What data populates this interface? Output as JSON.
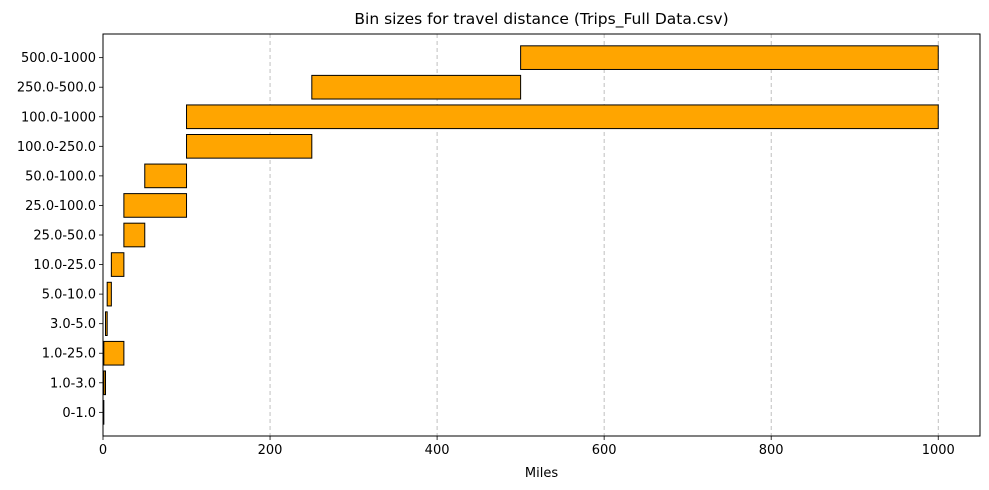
{
  "chart_data": {
    "type": "bar",
    "orientation": "horizontal",
    "title": "Bin sizes for travel distance (Trips_Full Data.csv)",
    "xlabel": "Miles",
    "ylabel": "",
    "xlim": [
      0,
      1050
    ],
    "x_ticks": [
      0,
      200,
      400,
      600,
      800,
      1000
    ],
    "x_grid": true,
    "y_grid": false,
    "bar_color": "#ffa500",
    "edge_color": "#000000",
    "grid_color": "#b0b0b0",
    "bars": [
      {
        "label": "0-1.0",
        "start": 0,
        "end": 1
      },
      {
        "label": "1.0-3.0",
        "start": 1,
        "end": 3
      },
      {
        "label": "1.0-25.0",
        "start": 1,
        "end": 25
      },
      {
        "label": "3.0-5.0",
        "start": 3,
        "end": 5
      },
      {
        "label": "5.0-10.0",
        "start": 5,
        "end": 10
      },
      {
        "label": "10.0-25.0",
        "start": 10,
        "end": 25
      },
      {
        "label": "25.0-50.0",
        "start": 25,
        "end": 50
      },
      {
        "label": "25.0-100.0",
        "start": 25,
        "end": 100
      },
      {
        "label": "50.0-100.0",
        "start": 50,
        "end": 100
      },
      {
        "label": "100.0-250.0",
        "start": 100,
        "end": 250
      },
      {
        "label": "100.0-1000",
        "start": 100,
        "end": 1000
      },
      {
        "label": "250.0-500.0",
        "start": 250,
        "end": 500
      },
      {
        "label": "500.0-1000",
        "start": 500,
        "end": 1000
      }
    ]
  }
}
